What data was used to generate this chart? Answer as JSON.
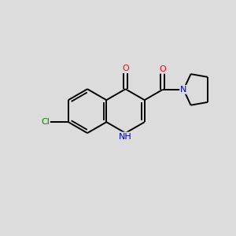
{
  "background_color": "#dcdcdc",
  "bond_color": "#000000",
  "atom_colors": {
    "O": "#ff0000",
    "N": "#0000cd",
    "Cl": "#008000",
    "H": "#000000",
    "C": "#000000"
  },
  "figsize": [
    3.0,
    3.0
  ],
  "dpi": 100
}
